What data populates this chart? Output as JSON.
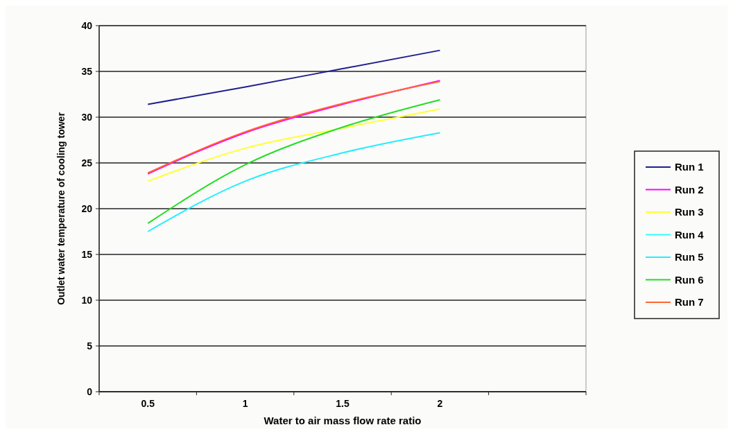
{
  "chart_data": {
    "type": "line",
    "xlabel": "Water to air mass flow rate ratio",
    "ylabel": "Outlet water temperature of cooling tower",
    "categories": [
      "0.5",
      "1",
      "1.5",
      "2",
      null
    ],
    "ylim": [
      0,
      40
    ],
    "yticks": [
      0,
      5,
      10,
      15,
      20,
      25,
      30,
      35,
      40
    ],
    "grid": "y",
    "legend": "right",
    "marker": "none",
    "line_style": "solid",
    "series": [
      {
        "name": "Run 1",
        "color": "#1f1f8f",
        "values": [
          31.4,
          33.3,
          35.3,
          37.3,
          null
        ]
      },
      {
        "name": "Run 2",
        "color": "#ff00ff",
        "values": [
          23.8,
          28.3,
          31.4,
          34.0,
          null
        ]
      },
      {
        "name": "Run 3",
        "color": "#ffff33",
        "values": [
          23.0,
          26.6,
          28.8,
          30.9,
          null
        ]
      },
      {
        "name": "Run 4",
        "color": "#33ffff",
        "values": [
          null,
          null,
          null,
          null,
          null
        ]
      },
      {
        "name": "Run 5",
        "color": "#22eeff",
        "values": [
          17.5,
          23.0,
          26.1,
          28.3,
          null
        ]
      },
      {
        "name": "Run 6",
        "color": "#22dd22",
        "values": [
          18.4,
          24.8,
          28.9,
          31.9,
          null
        ]
      },
      {
        "name": "Run 7",
        "color": "#ff6633",
        "values": [
          23.9,
          28.4,
          31.5,
          33.9,
          null
        ]
      }
    ]
  }
}
